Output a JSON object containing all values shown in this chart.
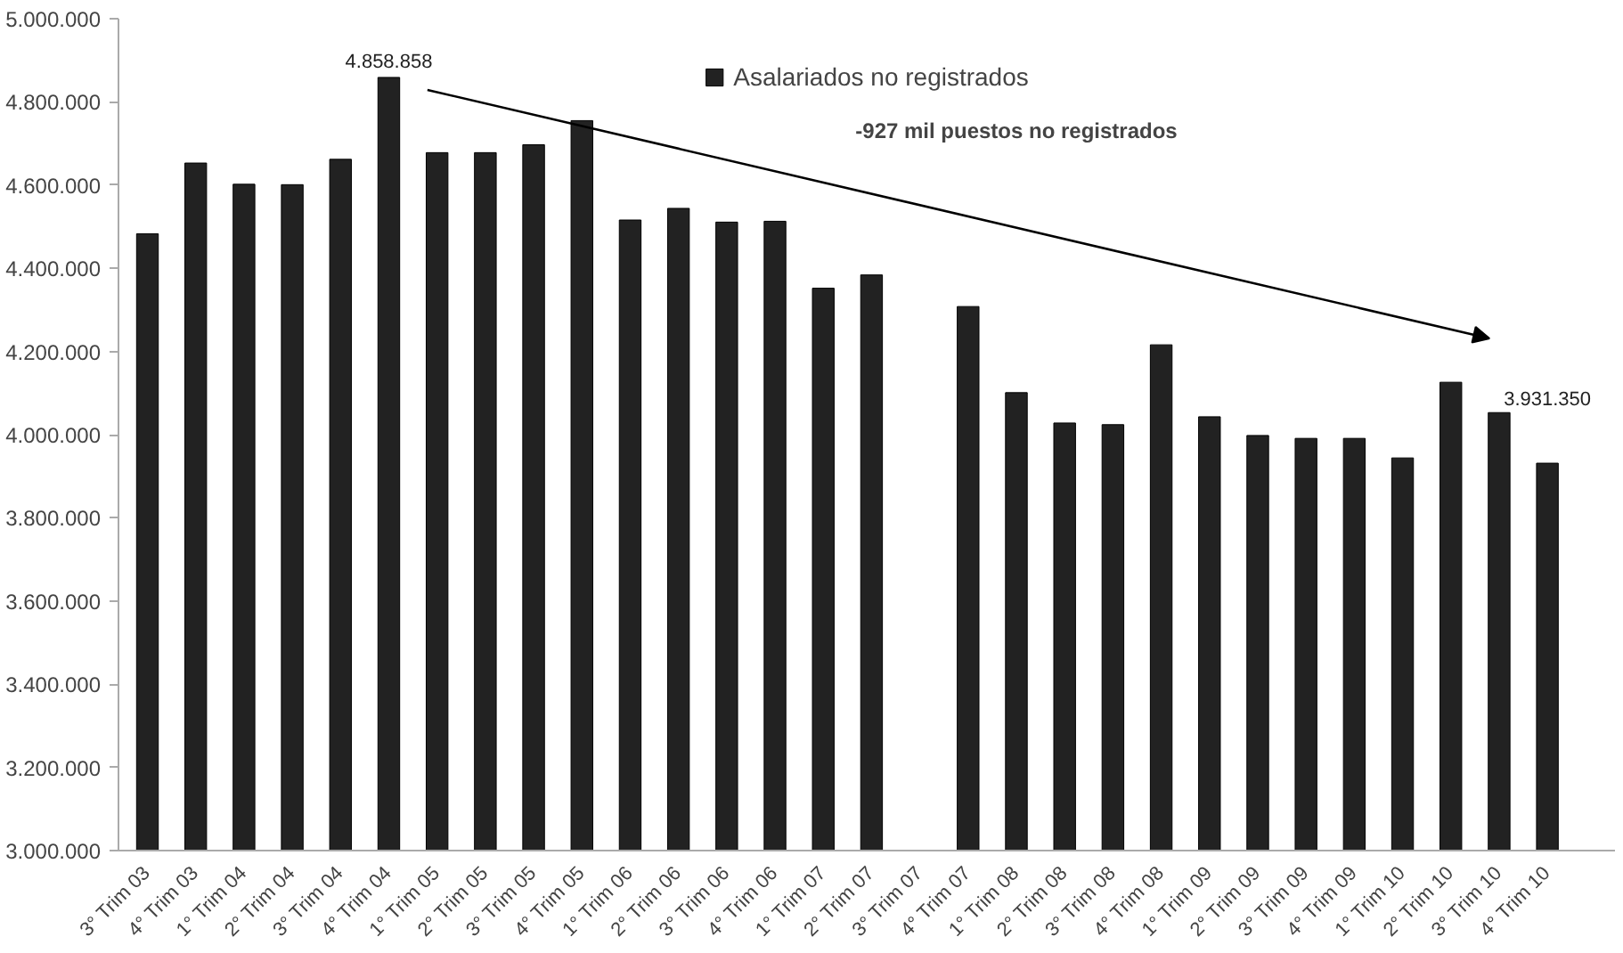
{
  "chart_data": {
    "type": "bar",
    "categories": [
      "3° Trim 03",
      "4° Trim 03",
      "1° Trim 04",
      "2° Trim 04",
      "3° Trim 04",
      "4° Trim 04",
      "1° Trim 05",
      "2° Trim 05",
      "3° Trim 05",
      "4° Trim 05",
      "1° Trim 06",
      "2° Trim 06",
      "3° Trim 06",
      "4° Trim 06",
      "1° Trim 07",
      "2° Trim 07",
      "3° Trim 07",
      "4° Trim 07",
      "1° Trim 08",
      "2° Trim 08",
      "3° Trim 08",
      "4° Trim 08",
      "1° Trim 09",
      "2° Trim 09",
      "3° Trim 09",
      "4° Trim 09",
      "1° Trim 10",
      "2° Trim 10",
      "3° Trim 10",
      "4° Trim 10"
    ],
    "series": [
      {
        "name": "Asalariados no registrados",
        "color": "#222222",
        "values": [
          4483000,
          4653000,
          4602000,
          4601000,
          4662000,
          4858858,
          4678000,
          4678000,
          4697000,
          4755000,
          4516000,
          4544000,
          4511000,
          4513000,
          4352000,
          4384000,
          null,
          4308000,
          4101000,
          4028000,
          4024000,
          4216000,
          4043000,
          3998000,
          3991000,
          3991000,
          3944000,
          4126000,
          4053000,
          3931350
        ],
        "value_labels": [
          null,
          null,
          null,
          null,
          null,
          "4.858.858",
          null,
          null,
          null,
          null,
          null,
          null,
          null,
          null,
          null,
          null,
          null,
          null,
          null,
          null,
          null,
          null,
          null,
          null,
          null,
          null,
          null,
          null,
          null,
          "3.931.350"
        ]
      }
    ],
    "ylim": [
      3000000,
      5000000
    ],
    "yticks": [
      {
        "value": 3000000,
        "label": "3.000.000"
      },
      {
        "value": 3200000,
        "label": "3.200.000"
      },
      {
        "value": 3400000,
        "label": "3.400.000"
      },
      {
        "value": 3600000,
        "label": "3.600.000"
      },
      {
        "value": 3800000,
        "label": "3.800.000"
      },
      {
        "value": 4000000,
        "label": "4.000.000"
      },
      {
        "value": 4200000,
        "label": "4.200.000"
      },
      {
        "value": 4400000,
        "label": "4.400.000"
      },
      {
        "value": 4600000,
        "label": "4.600.000"
      },
      {
        "value": 4800000,
        "label": "4.800.000"
      },
      {
        "value": 5000000,
        "label": "5.000.000"
      }
    ],
    "grid": false,
    "legend": "top",
    "annotations": [
      "-927 mil puestos no registrados"
    ]
  }
}
